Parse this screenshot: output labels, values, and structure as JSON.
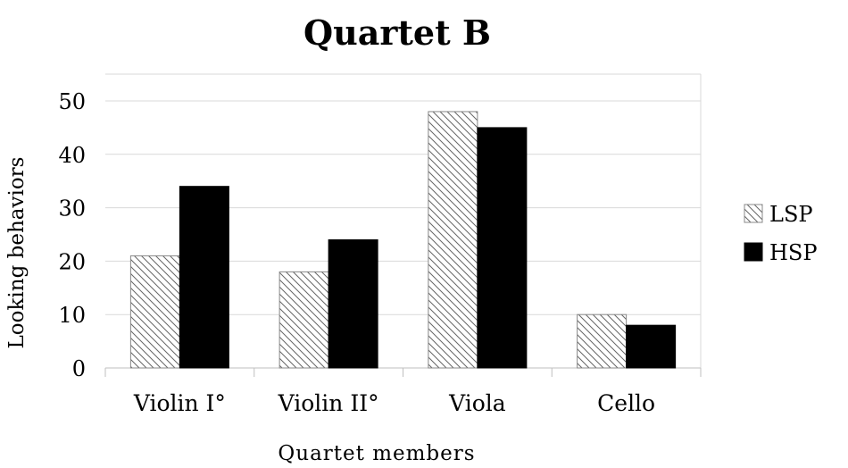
{
  "chart_data": {
    "type": "bar",
    "title": "Quartet B",
    "xlabel": "Quartet members",
    "ylabel": "Looking behaviors",
    "categories": [
      "Violin I°",
      "Violin II°",
      "Viola",
      "Cello"
    ],
    "series": [
      {
        "name": "LSP",
        "values": [
          21,
          18,
          48,
          10
        ],
        "fill": "hatched"
      },
      {
        "name": "HSP",
        "values": [
          34,
          24,
          45,
          8
        ],
        "fill": "#000000"
      }
    ],
    "ylim": [
      0,
      50
    ],
    "yticks": [
      "0",
      "10",
      "20",
      "30",
      "40",
      "50"
    ],
    "grid": true,
    "legend_position": "right"
  }
}
